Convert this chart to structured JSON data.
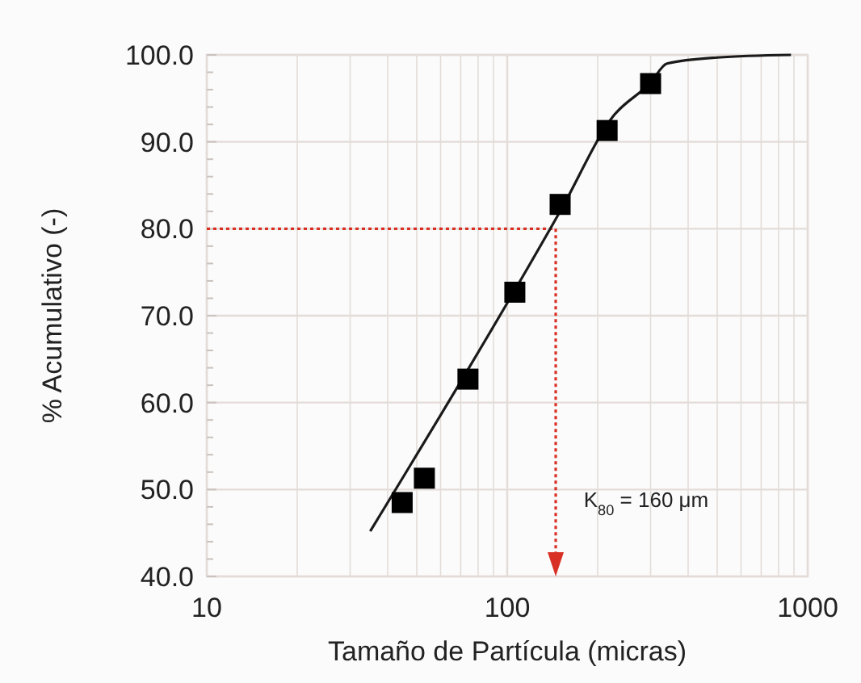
{
  "chart_data": {
    "type": "scatter",
    "xlabel": "Tamaño de Partícula (micras)",
    "ylabel": "% Acumulativo (-)",
    "log": "x",
    "grid": true,
    "marker": "square",
    "xlim": [
      10,
      1000
    ],
    "ylim": [
      40,
      100
    ],
    "xticks": [
      10,
      {
        "value": 20,
        "label": null
      },
      {
        "value": 30,
        "label": null
      },
      {
        "value": 40,
        "label": null
      },
      {
        "value": 50,
        "label": null
      },
      {
        "value": 60,
        "label": null
      },
      {
        "value": 70,
        "label": null
      },
      {
        "value": 80,
        "label": null
      },
      {
        "value": 90,
        "label": null
      },
      100,
      {
        "value": 200,
        "label": null
      },
      {
        "value": 300,
        "label": null
      },
      {
        "value": 400,
        "label": null
      },
      {
        "value": 500,
        "label": null
      },
      {
        "value": 600,
        "label": null
      },
      {
        "value": 700,
        "label": null
      },
      {
        "value": 800,
        "label": null
      },
      {
        "value": 900,
        "label": null
      },
      1000
    ],
    "yticks": [
      {
        "value": 40,
        "label": "40.0"
      },
      {
        "value": 42,
        "label": null
      },
      {
        "value": 44,
        "label": null
      },
      {
        "value": 46,
        "label": null
      },
      {
        "value": 48,
        "label": null
      },
      {
        "value": 50,
        "label": "50.0"
      },
      {
        "value": 52,
        "label": null
      },
      {
        "value": 54,
        "label": null
      },
      {
        "value": 56,
        "label": null
      },
      {
        "value": 58,
        "label": null
      },
      {
        "value": 60,
        "label": "60.0"
      },
      {
        "value": 62,
        "label": null
      },
      {
        "value": 64,
        "label": null
      },
      {
        "value": 66,
        "label": null
      },
      {
        "value": 68,
        "label": null
      },
      {
        "value": 70,
        "label": "70.0"
      },
      {
        "value": 72,
        "label": null
      },
      {
        "value": 74,
        "label": null
      },
      {
        "value": 76,
        "label": null
      },
      {
        "value": 78,
        "label": null
      },
      {
        "value": 80,
        "label": "80.0"
      },
      {
        "value": 82,
        "label": null
      },
      {
        "value": 84,
        "label": null
      },
      {
        "value": 86,
        "label": null
      },
      {
        "value": 88,
        "label": null
      },
      {
        "value": 90,
        "label": "90.0"
      },
      {
        "value": 92,
        "label": null
      },
      {
        "value": 94,
        "label": null
      },
      {
        "value": 96,
        "label": null
      },
      {
        "value": 98,
        "label": null
      },
      {
        "value": 100,
        "label": "100.0"
      }
    ],
    "series": [
      {
        "type": "line",
        "color": "#1a1a1a",
        "marker": "none",
        "line_style": "solid",
        "x": [
          35,
          150,
          226,
          300,
          340,
          500,
          880
        ],
        "values": [
          45.2,
          82,
          93,
          96.8,
          99,
          99.7,
          100
        ]
      },
      {
        "color": "#000000",
        "x": [
          44.7,
          53,
          74,
          106,
          150,
          215,
          300
        ],
        "values": [
          48.5,
          51.3,
          62.7,
          72.7,
          82.8,
          91.3,
          96.7
        ]
      }
    ],
    "ref_lines": [
      {
        "axis": "y",
        "value": 80,
        "color": "#d93025",
        "line_style": "dotted"
      },
      {
        "axis": "x",
        "value": 145,
        "color": "#d93025",
        "line_style": "dotted"
      }
    ],
    "annotations": [
      "K$_{80}$ = 160 μm"
    ]
  }
}
